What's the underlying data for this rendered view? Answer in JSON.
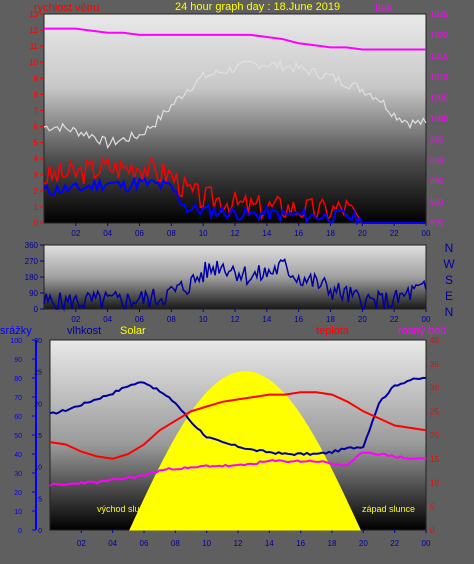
{
  "colors": {
    "bg": "#5f5f5f",
    "wind": "#ff0000",
    "gust": "#0000ff",
    "pressure": "#ff00ff",
    "humidity": "#0000a0",
    "solar": "#ffff00",
    "temperature": "#ff0000",
    "dewpoint": "#ff00ff",
    "tick": "#0000a0",
    "tickRight": "#ff00ff",
    "tickLeftTop": "#ff0000"
  },
  "chart_data": [
    {
      "type": "line",
      "title": "24 hour graph day : 18.June 2019",
      "left_label": "rychlost větru",
      "right_label": "tlak",
      "x_ticks": [
        "02",
        "04",
        "06",
        "08",
        "10",
        "12",
        "14",
        "16",
        "18",
        "20",
        "22",
        "00"
      ],
      "ylim_left": [
        0,
        13
      ],
      "yticks_left": [
        "0",
        "1",
        "2",
        "3",
        "4",
        "5",
        "6",
        "7",
        "8",
        "9",
        "10",
        "11",
        "12",
        "13"
      ],
      "ylim_right": [
        975,
        1025
      ],
      "yticks_right": [
        "975",
        "980",
        "985",
        "990",
        "995",
        "1000",
        "1005",
        "1010",
        "1015",
        "1020",
        "1025"
      ],
      "x": [
        0,
        1,
        2,
        3,
        4,
        5,
        6,
        7,
        8,
        9,
        10,
        11,
        12,
        13,
        14,
        15,
        16,
        17,
        18,
        19,
        20,
        21,
        22,
        23,
        24
      ],
      "series": [
        {
          "key": "wind",
          "values": [
            2.8,
            3.0,
            3.1,
            3.3,
            3.5,
            3.4,
            3.6,
            3.2,
            3.0,
            2.0,
            1.5,
            1.5,
            1.2,
            1.0,
            1.0,
            1.0,
            0.9,
            0.8,
            0.8,
            1.0,
            0.0,
            0.0,
            0.0,
            0.0,
            0.0
          ]
        },
        {
          "key": "gust",
          "values": [
            2.0,
            2.1,
            2.1,
            2.3,
            2.5,
            2.3,
            2.5,
            2.4,
            2.2,
            0.9,
            0.8,
            0.7,
            0.6,
            0.5,
            0.6,
            0.5,
            0.5,
            0.4,
            0.4,
            0.5,
            0.0,
            0.0,
            0.0,
            0.0,
            0.0
          ]
        },
        {
          "key": "pressure",
          "values": [
            1021.5,
            1021.5,
            1021.5,
            1021,
            1020.5,
            1020.5,
            1020,
            1020,
            1020,
            1020,
            1020,
            1020,
            1020,
            1020,
            1019.5,
            1019,
            1018,
            1017.5,
            1017,
            1017,
            1016.5,
            1016.5,
            1016.5,
            1016.5,
            1016.5
          ]
        },
        {
          "key": "pressure_trace",
          "values": [
            998,
            998,
            997,
            996,
            994,
            995,
            996,
            999,
            1003,
            1007,
            1010,
            1011,
            1012,
            1013,
            1013,
            1012.5,
            1012,
            1011,
            1010,
            1008.5,
            1007,
            1005,
            1001,
            999,
            999
          ]
        }
      ]
    },
    {
      "type": "line",
      "title": "",
      "right_letters": [
        "N",
        "W",
        "S",
        "E",
        "N"
      ],
      "ylim": [
        0,
        360
      ],
      "yticks": [
        "0",
        "90",
        "180",
        "270",
        "360"
      ],
      "x_ticks": [
        "02",
        "04",
        "06",
        "08",
        "10",
        "12",
        "14",
        "16",
        "18",
        "20",
        "22",
        "00"
      ],
      "x": [
        0,
        1,
        2,
        3,
        4,
        5,
        6,
        7,
        8,
        9,
        10,
        11,
        12,
        13,
        14,
        15,
        16,
        17,
        18,
        19,
        20,
        21,
        22,
        23,
        24
      ],
      "series": [
        {
          "key": "direction",
          "values": [
            40,
            35,
            40,
            45,
            45,
            45,
            55,
            60,
            90,
            130,
            200,
            250,
            220,
            180,
            200,
            240,
            180,
            150,
            110,
            80,
            45,
            40,
            45,
            90,
            110
          ]
        }
      ]
    },
    {
      "type": "line",
      "labels": {
        "precip": "srážky",
        "humidity": "vlhkost",
        "solar": "Solar",
        "temperature": "teplota",
        "dewpoint": "rosný bod"
      },
      "annotations": {
        "sunrise": "východ slu",
        "sunset": "západ slunce"
      },
      "x_ticks": [
        "02",
        "04",
        "06",
        "08",
        "10",
        "12",
        "14",
        "16",
        "18",
        "20",
        "22",
        "00"
      ],
      "ylim_precip": [
        0,
        100
      ],
      "yticks_precip": [
        "0",
        "10",
        "20",
        "30",
        "40",
        "50",
        "60",
        "70",
        "80",
        "90",
        "100"
      ],
      "ylim_hum": [
        0,
        30
      ],
      "yticks_hum": [
        "0",
        "5",
        "10",
        "15",
        "20",
        "25",
        "30"
      ],
      "ylim_temp": [
        0,
        40
      ],
      "yticks_temp": [
        "0",
        "5",
        "10",
        "15",
        "20",
        "25",
        "30",
        "35",
        "40"
      ],
      "x": [
        0,
        1,
        2,
        3,
        4,
        5,
        6,
        7,
        8,
        9,
        10,
        11,
        12,
        13,
        14,
        15,
        16,
        17,
        18,
        19,
        20,
        21,
        22,
        23,
        24
      ],
      "series": [
        {
          "key": "humidity",
          "values": [
            61,
            63,
            66,
            69,
            72,
            76,
            78,
            73,
            67,
            57,
            49,
            46,
            44,
            42,
            41,
            40,
            40,
            40,
            41,
            43,
            44,
            67,
            76,
            79,
            80
          ]
        },
        {
          "key": "temperature",
          "values": [
            18.5,
            18,
            16.5,
            15.5,
            15,
            16,
            18,
            21,
            23,
            25,
            26,
            27,
            27.5,
            28,
            28.5,
            28.5,
            29,
            29,
            28.5,
            27,
            25,
            23.5,
            22,
            21.5,
            21
          ]
        },
        {
          "key": "dewpoint",
          "values": [
            9.5,
            9.5,
            10,
            10,
            10.5,
            11,
            11.5,
            12.5,
            13,
            13,
            13.5,
            13.5,
            13.5,
            14,
            14.5,
            14.5,
            14.5,
            14.5,
            14,
            13.5,
            16.5,
            16,
            15.5,
            15,
            15
          ]
        },
        {
          "key": "solar",
          "values": [
            0,
            0,
            0,
            0,
            0,
            0,
            2,
            8,
            13,
            18,
            22,
            24,
            25,
            24,
            22,
            18,
            13,
            8,
            3,
            0,
            0,
            0,
            0,
            0,
            0
          ]
        }
      ]
    }
  ]
}
